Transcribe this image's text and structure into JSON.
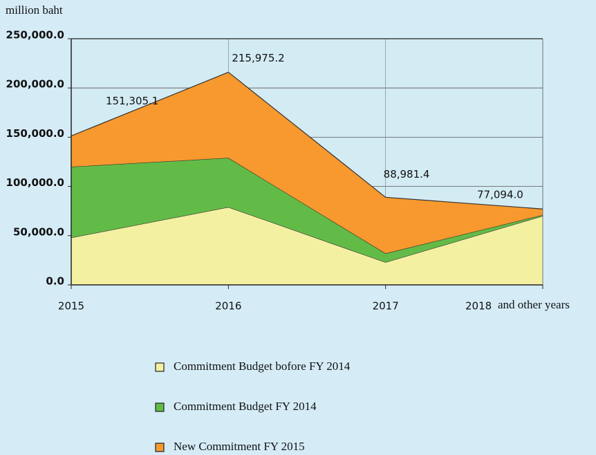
{
  "chart_data": {
    "type": "stacked_area",
    "y_unit_label": "million baht",
    "categories": [
      "2015",
      "2016",
      "2017",
      "2018"
    ],
    "x_suffix_label": "and other years",
    "series": [
      {
        "name": "Commitment Budget bofore FY 2014",
        "color": "#f4f0a2",
        "values": [
          48000,
          79000,
          23000,
          70000
        ]
      },
      {
        "name": "Commitment Budget FY 2014",
        "color": "#63bb47",
        "values": [
          72000,
          50000,
          9000,
          1000
        ]
      },
      {
        "name": "New Commitment FY 2015",
        "color": "#f7992e",
        "values": [
          31305.1,
          86975.2,
          56981.4,
          6094.0
        ]
      }
    ],
    "totals": [
      151305.1,
      215975.2,
      88981.4,
      77094.0
    ],
    "total_labels": [
      "151,305.1",
      "215,975.2",
      "88,981.4",
      "77,094.0"
    ],
    "ylim": [
      0,
      250000
    ],
    "yticks": [
      {
        "value": 0,
        "label": "0.0"
      },
      {
        "value": 50000,
        "label": "50,000.0"
      },
      {
        "value": 100000,
        "label": "100,000.0"
      },
      {
        "value": 150000,
        "label": "150,000.0"
      },
      {
        "value": 200000,
        "label": "200,000.0"
      },
      {
        "value": 250000,
        "label": "250,000.0"
      }
    ],
    "grid": true
  }
}
